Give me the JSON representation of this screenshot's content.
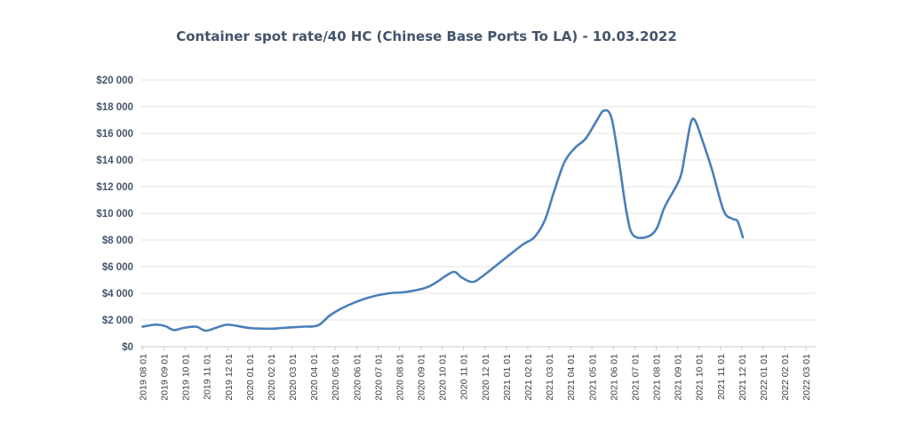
{
  "chart_data": {
    "type": "line",
    "title": "Container spot rate/40 HC (Chinese Base Ports To LA) - 10.03.2022",
    "xlabel": "",
    "ylabel": "",
    "ylim": [
      0,
      20000
    ],
    "y_ticks": [
      0,
      2000,
      4000,
      6000,
      8000,
      10000,
      12000,
      14000,
      16000,
      18000,
      20000
    ],
    "y_tick_labels": [
      "$0",
      "$2 000",
      "$4 000",
      "$6 000",
      "$8 000",
      "$10 000",
      "$12 000",
      "$14 000",
      "$16 000",
      "$18 000",
      "$20 000"
    ],
    "categories": [
      "2019 08 01",
      "2019 09 01",
      "2019 10 01",
      "2019 11 01",
      "2019 12 01",
      "2020 01 01",
      "2020 02 01",
      "2020 03 01",
      "2020 04 01",
      "2020 05 01",
      "2020 06 01",
      "2020 07 01",
      "2020 08 01",
      "2020 09 01",
      "2020 10 01",
      "2020 11 01",
      "2020 12 01",
      "2021 01 01",
      "2021 02 01",
      "2021 03 01",
      "2021 04 01",
      "2021 05 01",
      "2021 06 01",
      "2021 07 01",
      "2021 08 01",
      "2021 09 01",
      "2021 10 01",
      "2021 11 01",
      "2021 12 01",
      "2022 01 01",
      "2022 02 01",
      "2022 03 01"
    ],
    "series": [
      {
        "color": "#4a7fba",
        "points": [
          [
            0,
            1500
          ],
          [
            0.6,
            1650
          ],
          [
            1.05,
            1550
          ],
          [
            1.45,
            1250
          ],
          [
            1.9,
            1400
          ],
          [
            2.5,
            1500
          ],
          [
            2.95,
            1200
          ],
          [
            3.5,
            1450
          ],
          [
            4.0,
            1650
          ],
          [
            5.0,
            1400
          ],
          [
            6.0,
            1350
          ],
          [
            6.5,
            1400
          ],
          [
            7.5,
            1500
          ],
          [
            8.2,
            1600
          ],
          [
            8.8,
            2400
          ],
          [
            9.6,
            3100
          ],
          [
            10.6,
            3700
          ],
          [
            11.5,
            4000
          ],
          [
            12.3,
            4100
          ],
          [
            13.2,
            4400
          ],
          [
            13.7,
            4800
          ],
          [
            14.5,
            5600
          ],
          [
            14.9,
            5200
          ],
          [
            15.4,
            4850
          ],
          [
            15.9,
            5300
          ],
          [
            17.0,
            6700
          ],
          [
            17.8,
            7700
          ],
          [
            18.3,
            8200
          ],
          [
            18.8,
            9500
          ],
          [
            19.2,
            11500
          ],
          [
            19.7,
            13800
          ],
          [
            20.2,
            14900
          ],
          [
            20.7,
            15600
          ],
          [
            21.2,
            16900
          ],
          [
            21.55,
            17700
          ],
          [
            21.9,
            17200
          ],
          [
            22.25,
            14000
          ],
          [
            22.6,
            10200
          ],
          [
            22.9,
            8400
          ],
          [
            23.5,
            8200
          ],
          [
            24.0,
            8800
          ],
          [
            24.4,
            10500
          ],
          [
            25.1,
            12600
          ],
          [
            25.35,
            14500
          ],
          [
            25.6,
            16700
          ],
          [
            25.8,
            17000
          ],
          [
            26.15,
            15500
          ],
          [
            26.6,
            13300
          ],
          [
            27.15,
            10200
          ],
          [
            27.55,
            9600
          ],
          [
            27.8,
            9400
          ],
          [
            28.05,
            8200
          ]
        ]
      }
    ],
    "grid": true,
    "legend": "none"
  }
}
